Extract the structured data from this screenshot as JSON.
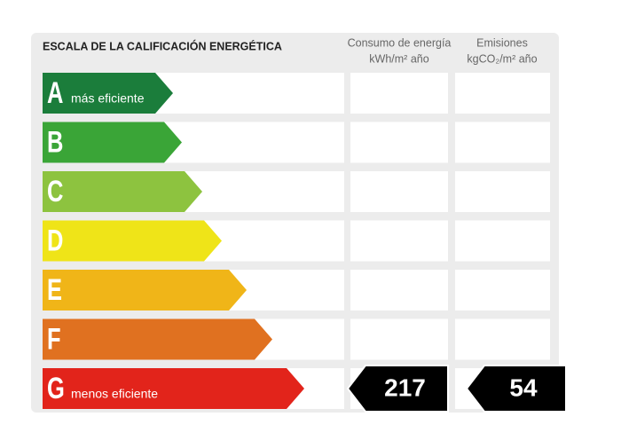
{
  "header": {
    "title": "ESCALA DE LA CALIFICACIÓN ENERGÉTICA",
    "columns": [
      {
        "line1": "Consumo de energía",
        "line2": "kWh/m² año"
      },
      {
        "line1": "Emisiones",
        "line2": "kgCO₂/m² año"
      }
    ]
  },
  "rows": [
    {
      "letter": "A",
      "label": "más eficiente",
      "color": "#1b7d3b"
    },
    {
      "letter": "B",
      "color": "#3aa537"
    },
    {
      "letter": "C",
      "color": "#8dc33f"
    },
    {
      "letter": "D",
      "color": "#efe418"
    },
    {
      "letter": "E",
      "color": "#f0b518"
    },
    {
      "letter": "F",
      "color": "#e07120"
    },
    {
      "letter": "G",
      "label": "menos eficiente",
      "color": "#e2241b"
    }
  ],
  "rating": {
    "row": 6,
    "energy": 217,
    "emissions": 54
  }
}
